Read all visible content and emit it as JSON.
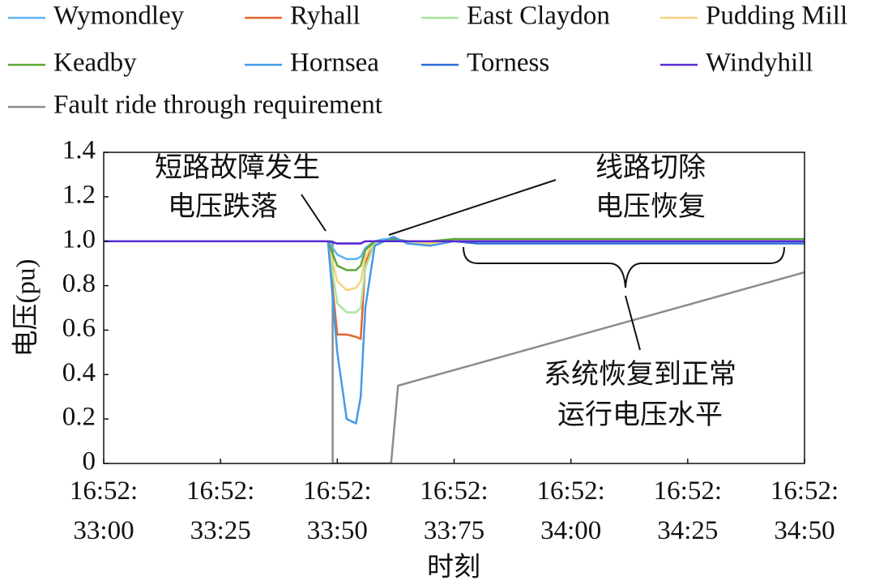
{
  "chart_data": {
    "type": "line",
    "x_label": "时刻",
    "y_label": "电压(pu)",
    "xlim": [
      33.0,
      34.5
    ],
    "ylim": [
      0,
      1.4
    ],
    "xticks": [
      {
        "value": 33.0,
        "label": "16:52:\n33:00"
      },
      {
        "value": 33.25,
        "label": "16:52:\n33:25"
      },
      {
        "value": 33.5,
        "label": "16:52:\n33:50"
      },
      {
        "value": 33.75,
        "label": "16:52:\n33:75"
      },
      {
        "value": 34.0,
        "label": "16:52:\n34:00"
      },
      {
        "value": 34.25,
        "label": "16:52:\n34:25"
      },
      {
        "value": 34.5,
        "label": "16:52:\n34:50"
      }
    ],
    "yticks": [
      0,
      0.2,
      0.4,
      0.6,
      0.8,
      {
        "value": 1,
        "label": "1.0"
      },
      1.2,
      1.4
    ],
    "annotations": [
      "短路故障发生",
      "电压跌落",
      "线路切除",
      "电压恢复",
      "系统恢复到正常",
      "运行电压水平"
    ],
    "x": [
      33.0,
      33.4,
      33.48,
      33.5,
      33.52,
      33.54,
      33.55,
      33.56,
      33.58,
      33.6,
      33.62,
      33.65,
      33.7,
      33.75,
      33.8,
      34.0,
      34.25,
      34.5
    ],
    "series": [
      {
        "name": "Wymondley",
        "color": "#5fb2f0",
        "values": [
          1.0,
          1.0,
          1.0,
          0.94,
          0.92,
          0.92,
          0.93,
          0.97,
          1.0,
          1.01,
          1.01,
          1.0,
          0.99,
          1.0,
          1.0,
          1.0,
          1.0,
          1.0
        ]
      },
      {
        "name": "Ryhall",
        "color": "#e4632c",
        "values": [
          1.0,
          1.0,
          1.0,
          0.58,
          0.58,
          0.57,
          0.56,
          0.9,
          1.0,
          1.0,
          1.0,
          1.0,
          1.0,
          1.0,
          1.0,
          1.0,
          1.0,
          1.0
        ]
      },
      {
        "name": "East Claydon",
        "color": "#a8e39c",
        "values": [
          1.0,
          1.0,
          1.0,
          0.72,
          0.68,
          0.68,
          0.7,
          0.88,
          0.99,
          1.0,
          1.01,
          1.0,
          0.99,
          1.0,
          1.0,
          1.0,
          1.0,
          1.0
        ]
      },
      {
        "name": "Pudding Mill",
        "color": "#f6d27c",
        "values": [
          1.0,
          1.0,
          1.0,
          0.82,
          0.78,
          0.79,
          0.82,
          0.93,
          1.0,
          1.0,
          1.01,
          1.0,
          0.99,
          1.0,
          1.0,
          1.0,
          1.0,
          1.0
        ]
      },
      {
        "name": "Keadby",
        "color": "#5aa832",
        "values": [
          1.0,
          1.0,
          1.0,
          0.89,
          0.87,
          0.87,
          0.89,
          0.96,
          1.0,
          1.0,
          1.01,
          1.0,
          1.0,
          1.01,
          1.01,
          1.01,
          1.01,
          1.01
        ]
      },
      {
        "name": "Hornsea",
        "color": "#4499e8",
        "values": [
          1.0,
          1.0,
          1.0,
          0.5,
          0.2,
          0.18,
          0.3,
          0.7,
          0.98,
          1.0,
          1.02,
          0.99,
          0.98,
          1.0,
          1.0,
          1.0,
          1.0,
          1.0
        ]
      },
      {
        "name": "Torness",
        "color": "#2f6bd8",
        "values": [
          1.0,
          1.0,
          1.0,
          0.99,
          0.99,
          0.99,
          0.99,
          1.0,
          1.0,
          1.0,
          1.0,
          1.0,
          1.0,
          1.0,
          0.99,
          0.99,
          0.99,
          0.99
        ]
      },
      {
        "name": "Windyhill",
        "color": "#5a2bd6",
        "values": [
          1.0,
          1.0,
          1.0,
          0.99,
          0.99,
          0.99,
          0.99,
          1.0,
          1.0,
          1.0,
          1.0,
          1.0,
          1.0,
          1.0,
          1.0,
          1.0,
          1.0,
          1.0
        ]
      },
      {
        "name": "Fault ride through requirement",
        "color": "#8c8c8c",
        "x": [
          33.0,
          33.49,
          33.49,
          33.615,
          33.63,
          34.5
        ],
        "values": [
          1.0,
          1.0,
          0,
          0,
          0.35,
          0.86
        ]
      }
    ]
  }
}
